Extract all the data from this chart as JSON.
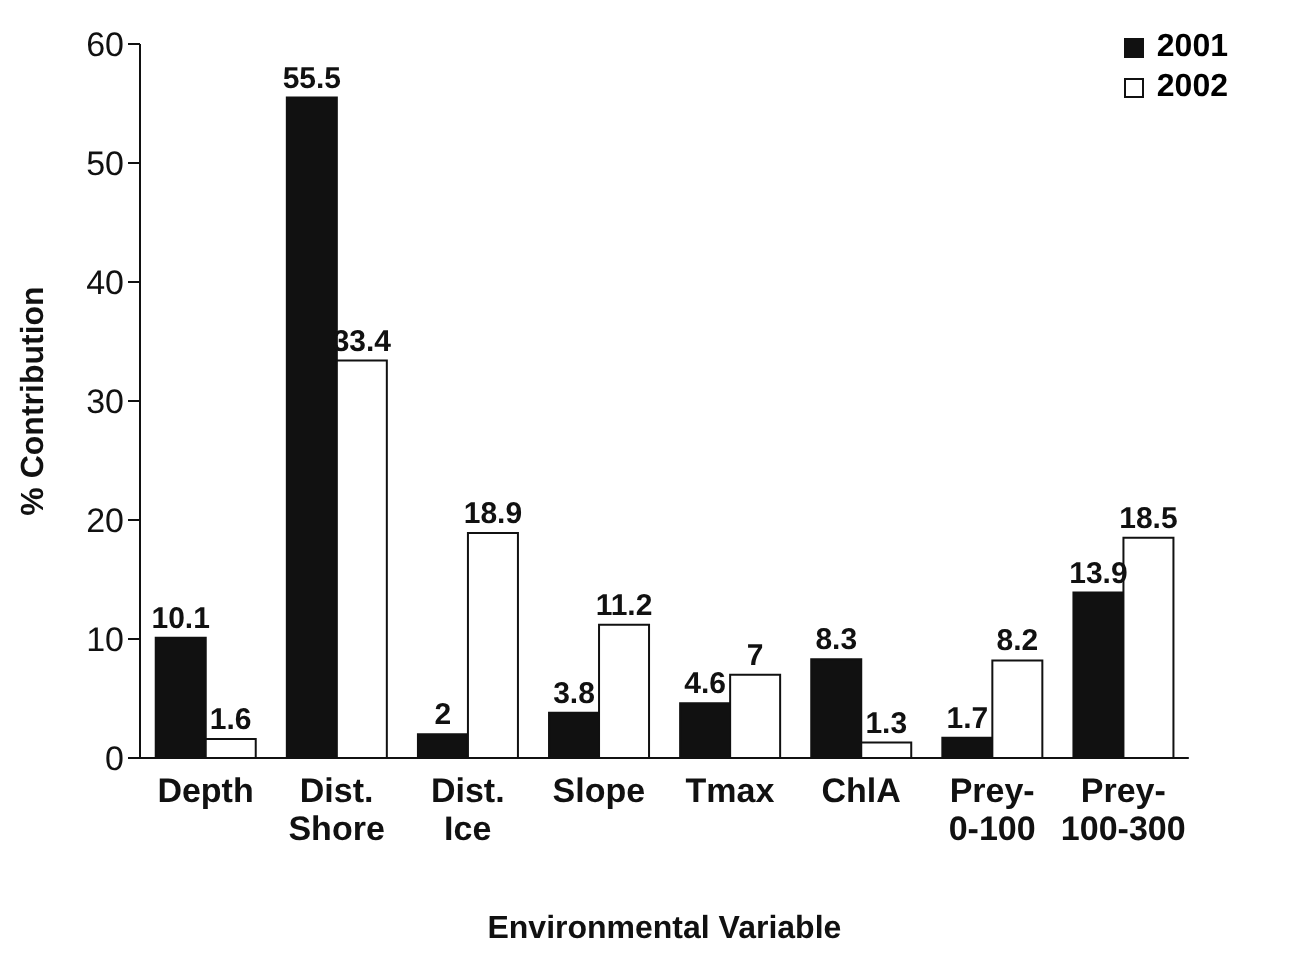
{
  "chart_data": {
    "type": "bar",
    "xlabel": "Environmental Variable",
    "ylabel": "% Contribution",
    "categories": [
      "Depth",
      "Dist. Shore",
      "Dist. Ice",
      "Slope",
      "Tmax",
      "ChlA",
      "Prey-0-100",
      "Prey-100-300"
    ],
    "series": [
      {
        "name": "2001",
        "color": "#111111",
        "values": [
          10.1,
          55.5,
          2,
          3.8,
          4.6,
          8.3,
          1.7,
          13.9
        ]
      },
      {
        "name": "2002",
        "color": "#ffffff",
        "values": [
          1.6,
          33.4,
          18.9,
          11.2,
          7,
          1.3,
          8.2,
          18.5
        ]
      }
    ],
    "ylim": [
      0,
      60
    ],
    "yticks": [
      0,
      10,
      20,
      30,
      40,
      50,
      60
    ],
    "data_labels": true,
    "legend": "top right",
    "grid": false
  }
}
